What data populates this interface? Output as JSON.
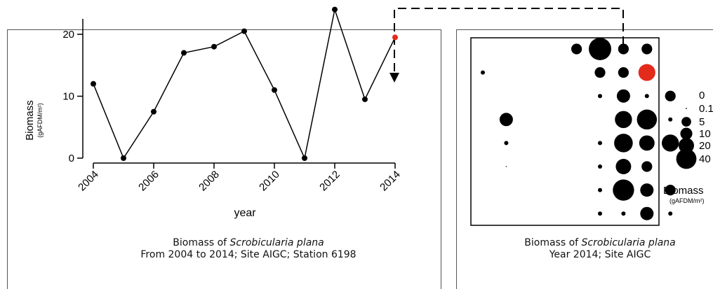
{
  "left_panel": {
    "caption": {
      "line1_prefix": "Biomass of ",
      "line1_species": "Scrobicularia plana",
      "line2": "From 2004 to 2014; Site AIGC; Station 6198"
    }
  },
  "right_panel": {
    "caption": {
      "line1_prefix": "Biomass of ",
      "line1_species": "Scrobicularia plana",
      "line2": "Year 2014; Site AIGC"
    }
  },
  "colors": {
    "highlight": "#e32b1b",
    "marker": "#000000"
  },
  "chart_data": [
    {
      "type": "line",
      "xlabel": "year",
      "ylabel": "Biomass",
      "ylabel_unit": "(gAFDM/m²)",
      "ylim": [
        0,
        25
      ],
      "xlim": [
        2004,
        2014
      ],
      "yticks": [
        0,
        10,
        20
      ],
      "xticks": [
        2004,
        2006,
        2008,
        2010,
        2012,
        2014
      ],
      "x": [
        2004,
        2005,
        2006,
        2007,
        2008,
        2009,
        2010,
        2011,
        2012,
        2013,
        2014
      ],
      "y": [
        12,
        0,
        7.5,
        17,
        18,
        20.5,
        11,
        0,
        24,
        9.5,
        19.5
      ],
      "highlight_point": {
        "x": 2014,
        "y": 19.5
      }
    },
    {
      "type": "scatter",
      "title": "",
      "description": "bubble grid map of station biomass",
      "grid_columns": 10,
      "grid_rows": 8,
      "points": [
        {
          "col": 4,
          "row": 0,
          "value": 5
        },
        {
          "col": 5,
          "row": 0,
          "value": 40
        },
        {
          "col": 6,
          "row": 0,
          "value": 5
        },
        {
          "col": 7,
          "row": 0,
          "value": 5
        },
        {
          "col": 0,
          "row": 1,
          "value": 0.1
        },
        {
          "col": 5,
          "row": 1,
          "value": 5
        },
        {
          "col": 6,
          "row": 1,
          "value": 5
        },
        {
          "col": 7,
          "row": 1,
          "value": 19.5,
          "highlight": true
        },
        {
          "col": 5,
          "row": 2,
          "value": 0.1
        },
        {
          "col": 6,
          "row": 2,
          "value": 10
        },
        {
          "col": 7,
          "row": 2,
          "value": 0.1
        },
        {
          "col": 8,
          "row": 2,
          "value": 5
        },
        {
          "col": 1,
          "row": 3,
          "value": 10
        },
        {
          "col": 6,
          "row": 3,
          "value": 20
        },
        {
          "col": 7,
          "row": 3,
          "value": 30
        },
        {
          "col": 8,
          "row": 3,
          "value": 0.1
        },
        {
          "col": 1,
          "row": 4,
          "value": 0.1
        },
        {
          "col": 5,
          "row": 4,
          "value": 0.1
        },
        {
          "col": 6,
          "row": 4,
          "value": 25
        },
        {
          "col": 7,
          "row": 4,
          "value": 15
        },
        {
          "col": 8,
          "row": 4,
          "value": 20
        },
        {
          "col": 1,
          "row": 5,
          "value": 0
        },
        {
          "col": 5,
          "row": 5,
          "value": 0.1
        },
        {
          "col": 6,
          "row": 5,
          "value": 15
        },
        {
          "col": 7,
          "row": 5,
          "value": 5
        },
        {
          "col": 5,
          "row": 6,
          "value": 0.1
        },
        {
          "col": 6,
          "row": 6,
          "value": 35
        },
        {
          "col": 7,
          "row": 6,
          "value": 10
        },
        {
          "col": 8,
          "row": 6,
          "value": 5
        },
        {
          "col": 5,
          "row": 7,
          "value": 0.1
        },
        {
          "col": 6,
          "row": 7,
          "value": 0.1
        },
        {
          "col": 7,
          "row": 7,
          "value": 10
        },
        {
          "col": 8,
          "row": 7,
          "value": 0.1
        }
      ],
      "legend": {
        "values": [
          0,
          0.1,
          5,
          10,
          20,
          40
        ],
        "labels": [
          "0",
          "0.1",
          "5",
          "10",
          "20",
          "40"
        ],
        "title": "Biomass",
        "unit": "(gAFDM/m²)"
      }
    }
  ]
}
